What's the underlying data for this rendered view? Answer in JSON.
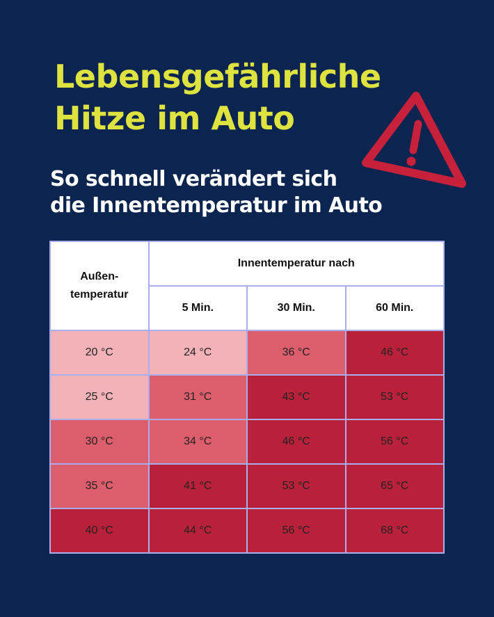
{
  "headline": {
    "line1": "Lebensgefährliche",
    "line2": "Hitze im Auto"
  },
  "subheadline": {
    "line1": "So schnell verändert sich",
    "line2": "die Innentemperatur im Auto"
  },
  "warning_icon": "warning-triangle-icon",
  "colors": {
    "background": "#0b2450",
    "headline": "#dfe33f",
    "icon": "#c8213c",
    "light": "#f2b2b8",
    "mid": "#dc5e6c",
    "dark": "#b9213b",
    "grid": "#a9aef0"
  },
  "table": {
    "outer_header_line1": "Außen-",
    "outer_header_line2": "temperatur",
    "group_header": "Innentemperatur nach",
    "columns": [
      "5 Min.",
      "30 Min.",
      "60 Min."
    ],
    "rows": [
      {
        "outer": "20 °C",
        "values": [
          "24 °C",
          "36 °C",
          "46 °C"
        ]
      },
      {
        "outer": "25 °C",
        "values": [
          "31 °C",
          "43 °C",
          "53 °C"
        ]
      },
      {
        "outer": "30 °C",
        "values": [
          "34 °C",
          "46 °C",
          "56 °C"
        ]
      },
      {
        "outer": "35 °C",
        "values": [
          "41 °C",
          "53 °C",
          "65 °C"
        ]
      },
      {
        "outer": "40 °C",
        "values": [
          "44 °C",
          "56 °C",
          "68 °C"
        ]
      }
    ]
  }
}
